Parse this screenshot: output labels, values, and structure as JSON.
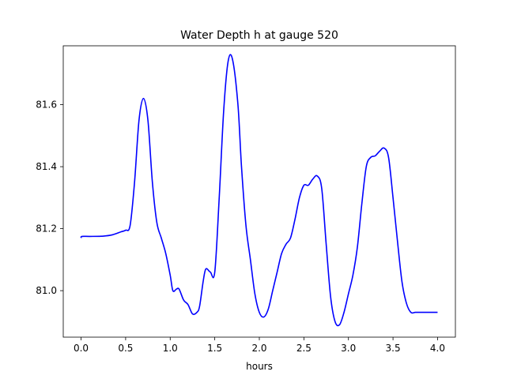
{
  "chart_data": {
    "type": "line",
    "title": "Water Depth h at gauge 520",
    "xlabel": "hours",
    "ylabel": "",
    "xlim": [
      -0.2,
      4.2
    ],
    "ylim": [
      80.85,
      81.79
    ],
    "xticks": [
      0.0,
      0.5,
      1.0,
      1.5,
      2.0,
      2.5,
      3.0,
      3.5,
      4.0
    ],
    "xtick_labels": [
      "0.0",
      "0.5",
      "1.0",
      "1.5",
      "2.0",
      "2.5",
      "3.0",
      "3.5",
      "4.0"
    ],
    "yticks": [
      81.0,
      81.2,
      81.4,
      81.6
    ],
    "ytick_labels": [
      "81.0",
      "81.2",
      "81.4",
      "81.6"
    ],
    "grid": false,
    "legend": "none",
    "series": [
      {
        "color": "#0000ff",
        "x": [
          0.0,
          0.01,
          0.1,
          0.25,
          0.35,
          0.45,
          0.5,
          0.55,
          0.6,
          0.65,
          0.7,
          0.75,
          0.8,
          0.85,
          0.9,
          0.95,
          1.0,
          1.03,
          1.07,
          1.1,
          1.15,
          1.2,
          1.25,
          1.3,
          1.33,
          1.37,
          1.4,
          1.45,
          1.5,
          1.55,
          1.6,
          1.65,
          1.7,
          1.76,
          1.8,
          1.85,
          1.9,
          1.95,
          2.0,
          2.05,
          2.1,
          2.15,
          2.2,
          2.25,
          2.3,
          2.35,
          2.4,
          2.45,
          2.5,
          2.55,
          2.6,
          2.65,
          2.7,
          2.75,
          2.8,
          2.85,
          2.9,
          2.95,
          3.0,
          3.05,
          3.1,
          3.15,
          3.2,
          3.25,
          3.3,
          3.35,
          3.4,
          3.45,
          3.5,
          3.55,
          3.6,
          3.65,
          3.7,
          3.75,
          3.8,
          3.85,
          3.9,
          3.95,
          4.0
        ],
        "y": [
          81.17,
          81.175,
          81.175,
          81.176,
          81.18,
          81.19,
          81.195,
          81.21,
          81.35,
          81.55,
          81.62,
          81.55,
          81.35,
          81.22,
          81.17,
          81.12,
          81.05,
          81.0,
          81.005,
          81.005,
          80.97,
          80.955,
          80.925,
          80.93,
          80.95,
          81.03,
          81.07,
          81.06,
          81.06,
          81.3,
          81.58,
          81.74,
          81.745,
          81.6,
          81.4,
          81.21,
          81.1,
          80.99,
          80.93,
          80.915,
          80.94,
          81.0,
          81.06,
          81.12,
          81.15,
          81.17,
          81.23,
          81.3,
          81.34,
          81.34,
          81.36,
          81.37,
          81.33,
          81.15,
          80.98,
          80.9,
          80.89,
          80.93,
          80.99,
          81.05,
          81.14,
          81.28,
          81.4,
          81.43,
          81.435,
          81.45,
          81.46,
          81.43,
          81.3,
          81.16,
          81.03,
          80.96,
          80.93,
          80.93,
          80.93,
          80.93,
          80.93,
          80.93,
          80.93
        ]
      }
    ]
  }
}
